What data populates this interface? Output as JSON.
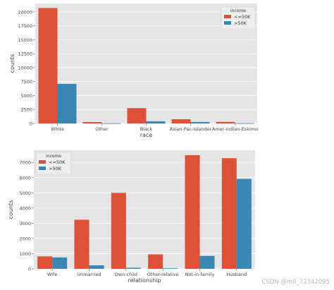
{
  "colors": {
    "low": "#dd5138",
    "high": "#3a87b3",
    "panel": "#e5e5e5",
    "grid": "#ffffff",
    "text": "#444444"
  },
  "watermark": "CSDN @m0_72342095",
  "chart_data": [
    {
      "type": "bar",
      "title": "",
      "xlabel": "race",
      "ylabel": "counts",
      "categories": [
        "White",
        "Other",
        "Black",
        "Asian-Pac-Islander",
        "Amer-Indian-Eskimo"
      ],
      "series": [
        {
          "name": "<=50K",
          "values": [
            20700,
            250,
            2750,
            760,
            280
          ]
        },
        {
          "name": ">50K",
          "values": [
            7100,
            30,
            380,
            270,
            40
          ]
        }
      ],
      "ylim": [
        0,
        21500
      ],
      "yticks": [
        0,
        2500,
        5000,
        7500,
        10000,
        12500,
        15000,
        17500,
        20000
      ],
      "legend_title": "income",
      "legend_position": "top-right",
      "grid": true
    },
    {
      "type": "bar",
      "title": "",
      "xlabel": "relationship",
      "ylabel": "counts",
      "categories": [
        "Wife",
        "Unmarried",
        "Own-child",
        "Other-relative",
        "Not-in-family",
        "Husband"
      ],
      "series": [
        {
          "name": "<=50K",
          "values": [
            820,
            3230,
            5000,
            950,
            7480,
            7280
          ]
        },
        {
          "name": ">50K",
          "values": [
            750,
            230,
            70,
            40,
            850,
            5920
          ]
        }
      ],
      "ylim": [
        0,
        7800
      ],
      "yticks": [
        0,
        1000,
        2000,
        3000,
        4000,
        5000,
        6000,
        7000
      ],
      "legend_title": "income",
      "legend_position": "top-left",
      "grid": true
    }
  ]
}
